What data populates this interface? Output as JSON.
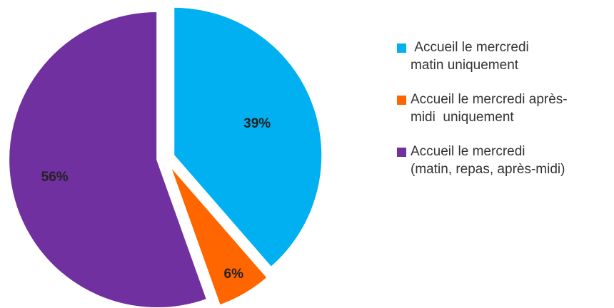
{
  "chart_data": {
    "type": "pie",
    "categories": [
      " Accueil le mercredi\nmatin uniquement",
      "Accueil le mercredi après-\nmidi  uniquement",
      "Accueil le mercredi\n(matin, repas, après-midi)"
    ],
    "values": [
      39,
      6,
      56
    ],
    "value_labels": [
      "39%",
      "6%",
      "56%"
    ],
    "colors": [
      "#00b0f0",
      "#ff6600",
      "#7030a0"
    ],
    "legend": "right"
  }
}
